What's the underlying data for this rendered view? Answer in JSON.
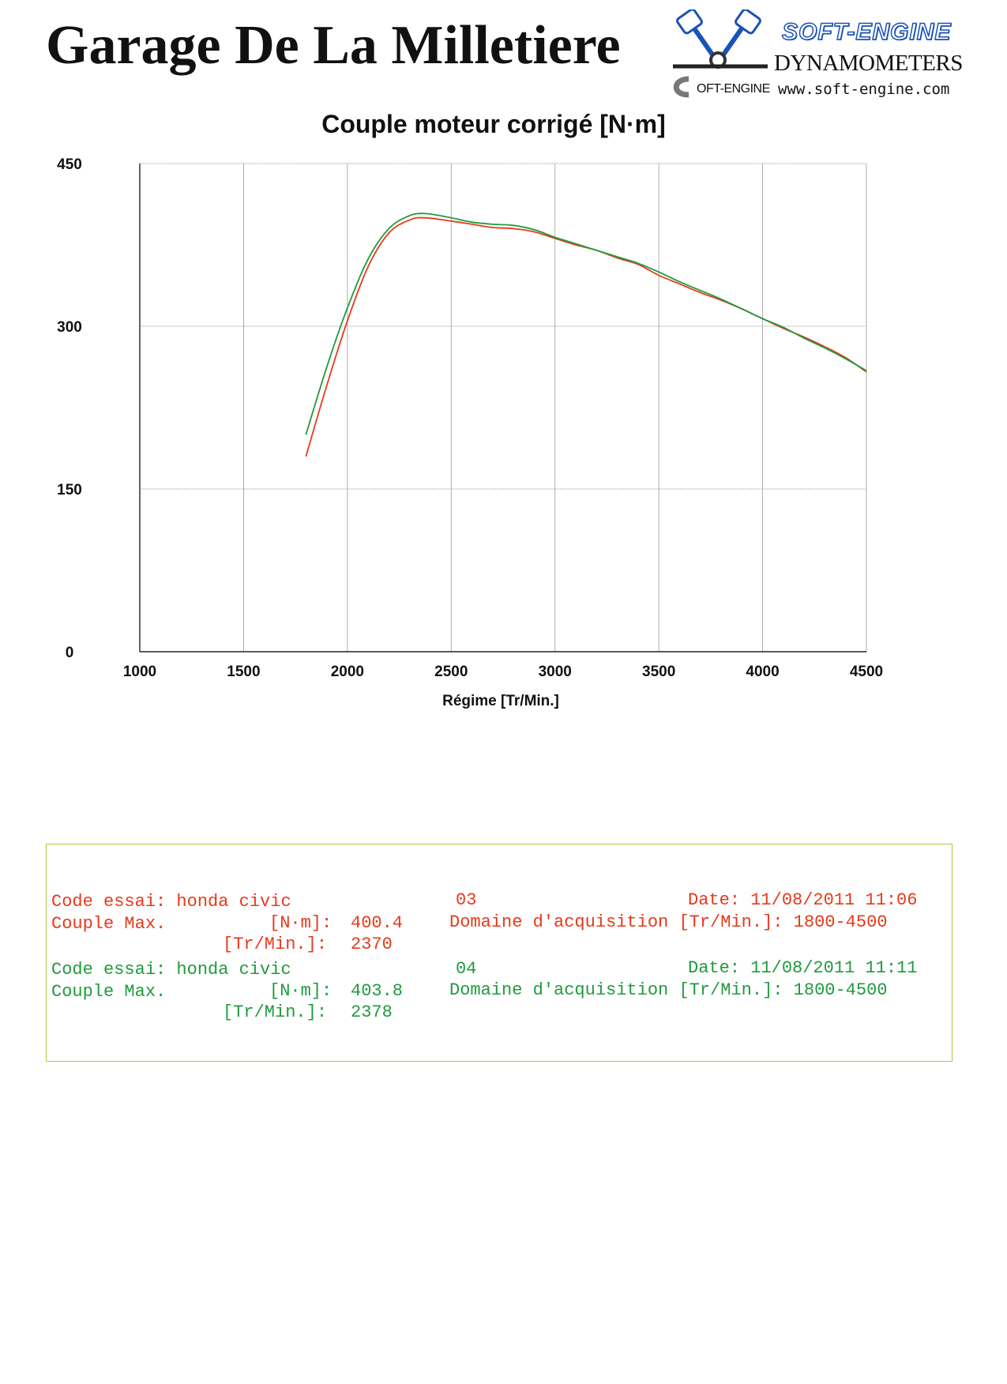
{
  "header": {
    "title": "Garage De La Milletiere",
    "logo": {
      "brand": "SOFT-ENGINE",
      "subtitle": "DYNAMOMETERS",
      "url": "www.soft-engine.com",
      "mark_text": "OFT-ENGINE"
    }
  },
  "colors": {
    "run_03": "#e8391a",
    "run_04": "#1f9b3e",
    "grid": "#9a9a9a",
    "box_border": "#a9cc3f"
  },
  "chart_data": {
    "type": "line",
    "title": "Couple moteur corrigé [N·m]",
    "xlabel": "Régime [Tr/Min.]",
    "ylabel": "",
    "xlim": [
      1000,
      4500
    ],
    "ylim": [
      0,
      450
    ],
    "x_ticks": [
      "1000",
      "1500",
      "2000",
      "2500",
      "3000",
      "3500",
      "4000",
      "4500"
    ],
    "y_ticks": [
      "0",
      "150",
      "300",
      "450"
    ],
    "grid": true,
    "legend": "none",
    "series": [
      {
        "color": "#e8391a",
        "x": [
          1800,
          1900,
          2000,
          2100,
          2200,
          2300,
          2370,
          2500,
          2600,
          2700,
          2800,
          2900,
          3000,
          3100,
          3200,
          3300,
          3400,
          3500,
          3600,
          3700,
          3800,
          3900,
          4000,
          4100,
          4200,
          4300,
          4400,
          4500
        ],
        "y": [
          180,
          245,
          305,
          355,
          386,
          398,
          400,
          397,
          394,
          391,
          390,
          387,
          381,
          375,
          370,
          363,
          357,
          347,
          339,
          331,
          324,
          316,
          307,
          298,
          290,
          281,
          271,
          258
        ]
      },
      {
        "color": "#1f9b3e",
        "x": [
          1800,
          1900,
          2000,
          2100,
          2200,
          2300,
          2378,
          2500,
          2600,
          2700,
          2800,
          2900,
          3000,
          3100,
          3200,
          3300,
          3400,
          3500,
          3600,
          3700,
          3800,
          3900,
          4000,
          4100,
          4200,
          4300,
          4400,
          4500
        ],
        "y": [
          200,
          262,
          317,
          362,
          390,
          402,
          403.8,
          400,
          396,
          394,
          393,
          389,
          382,
          376,
          370,
          364,
          358,
          350,
          341,
          333,
          325,
          316,
          307,
          299,
          289,
          280,
          270,
          259
        ]
      }
    ]
  },
  "info": {
    "run1": {
      "line1_left": "Code essai: honda civic",
      "line1_mid": "03",
      "line1_right": "Date: 11/08/2011 11:06",
      "line2_left": "Couple Max.",
      "line2_unit": "[N·m]:",
      "line2_value": "400.4",
      "line2_right": "Domaine d'acquisition [Tr/Min.]: 1800-4500",
      "line3_unit": "[Tr/Min.]:",
      "line3_value": "2370"
    },
    "run2": {
      "line1_left": "Code essai: honda civic",
      "line1_mid": "04",
      "line1_right": "Date: 11/08/2011 11:11",
      "line2_left": "Couple Max.",
      "line2_unit": "[N·m]:",
      "line2_value": "403.8",
      "line2_right": "Domaine d'acquisition [Tr/Min.]: 1800-4500",
      "line3_unit": "[Tr/Min.]:",
      "line3_value": "2378"
    }
  }
}
